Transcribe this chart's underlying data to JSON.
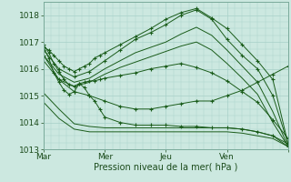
{
  "xlabel": "Pression niveau de la mer( hPa )",
  "bg_color": "#cce8e0",
  "grid_color": "#a8d0c8",
  "line_color": "#1a5c1a",
  "marker_color": "#1a5c1a",
  "ylim": [
    1013.0,
    1018.5
  ],
  "xlim": [
    0,
    192
  ],
  "x_ticks": [
    0,
    48,
    96,
    144,
    192
  ],
  "x_tick_labels": [
    "Mar",
    "Mer",
    "Jeu",
    "Ven",
    ""
  ],
  "y_ticks": [
    1013,
    1014,
    1015,
    1016,
    1017,
    1018
  ],
  "lines": [
    {
      "x": [
        0,
        4,
        8,
        12,
        16,
        20,
        24,
        28,
        32,
        36,
        40,
        44,
        48,
        60,
        72,
        84,
        96,
        108,
        120,
        132,
        144,
        156,
        168,
        180,
        192
      ],
      "y": [
        1016.8,
        1016.7,
        1016.5,
        1016.3,
        1016.1,
        1016.0,
        1015.9,
        1016.0,
        1016.1,
        1016.2,
        1016.4,
        1016.5,
        1016.6,
        1016.9,
        1017.2,
        1017.5,
        1017.85,
        1018.1,
        1018.25,
        1017.9,
        1017.5,
        1016.9,
        1016.3,
        1015.6,
        1013.2
      ],
      "marker": "+"
    },
    {
      "x": [
        0,
        12,
        24,
        36,
        48,
        60,
        72,
        84,
        96,
        108,
        120,
        132,
        144,
        156,
        168,
        180,
        192
      ],
      "y": [
        1016.7,
        1016.0,
        1015.7,
        1015.9,
        1016.3,
        1016.7,
        1017.1,
        1017.35,
        1017.65,
        1018.0,
        1018.2,
        1017.85,
        1017.1,
        1016.5,
        1016.0,
        1015.0,
        1013.2
      ],
      "marker": "+"
    },
    {
      "x": [
        0,
        12,
        24,
        36,
        48,
        60,
        72,
        84,
        96,
        108,
        120,
        132,
        144,
        156,
        168,
        180,
        192
      ],
      "y": [
        1016.5,
        1015.8,
        1015.5,
        1015.65,
        1016.0,
        1016.3,
        1016.6,
        1016.8,
        1017.0,
        1017.3,
        1017.55,
        1017.25,
        1016.7,
        1016.1,
        1015.5,
        1014.4,
        1013.1
      ],
      "marker": null
    },
    {
      "x": [
        0,
        12,
        24,
        36,
        48,
        60,
        72,
        84,
        96,
        108,
        120,
        132,
        144,
        156,
        168,
        180,
        192
      ],
      "y": [
        1016.3,
        1015.6,
        1015.35,
        1015.5,
        1015.8,
        1016.05,
        1016.25,
        1016.45,
        1016.65,
        1016.85,
        1017.0,
        1016.7,
        1016.2,
        1015.65,
        1015.05,
        1014.0,
        1013.1
      ],
      "marker": null
    },
    {
      "x": [
        0,
        4,
        8,
        12,
        16,
        20,
        24,
        28,
        32,
        36,
        40,
        44,
        48,
        60,
        72,
        84,
        96,
        108,
        120,
        132,
        144,
        156,
        168,
        180,
        192
      ],
      "y": [
        1016.9,
        1016.6,
        1016.2,
        1015.9,
        1015.6,
        1015.4,
        1015.35,
        1015.45,
        1015.5,
        1015.55,
        1015.55,
        1015.6,
        1015.65,
        1015.75,
        1015.85,
        1016.0,
        1016.1,
        1016.2,
        1016.05,
        1015.85,
        1015.55,
        1015.15,
        1014.75,
        1014.1,
        1013.4
      ],
      "marker": "+"
    },
    {
      "x": [
        0,
        4,
        8,
        12,
        16,
        20,
        24,
        28,
        32,
        36,
        40,
        44,
        48,
        60,
        72,
        84,
        96,
        108,
        120,
        132,
        144,
        156,
        168,
        180,
        192
      ],
      "y": [
        1016.8,
        1016.4,
        1015.85,
        1015.5,
        1015.2,
        1015.05,
        1015.15,
        1015.45,
        1015.3,
        1015.0,
        1014.8,
        1014.5,
        1014.2,
        1014.0,
        1013.9,
        1013.9,
        1013.9,
        1013.85,
        1013.85,
        1013.8,
        1013.8,
        1013.75,
        1013.65,
        1013.5,
        1013.1
      ],
      "marker": "+"
    },
    {
      "x": [
        0,
        12,
        24,
        36,
        48,
        60,
        72,
        84,
        96,
        108,
        120,
        132,
        144,
        156,
        168,
        180,
        192
      ],
      "y": [
        1016.5,
        1015.6,
        1015.15,
        1015.0,
        1014.8,
        1014.6,
        1014.5,
        1014.5,
        1014.6,
        1014.7,
        1014.8,
        1014.8,
        1015.0,
        1015.2,
        1015.5,
        1015.8,
        1016.1
      ],
      "marker": "+"
    },
    {
      "x": [
        0,
        12,
        24,
        36,
        48,
        60,
        72,
        84,
        96,
        108,
        120,
        132,
        144,
        156,
        168,
        180,
        192
      ],
      "y": [
        1015.1,
        1014.5,
        1013.95,
        1013.85,
        1013.8,
        1013.8,
        1013.8,
        1013.8,
        1013.8,
        1013.8,
        1013.8,
        1013.8,
        1013.8,
        1013.75,
        1013.65,
        1013.5,
        1013.2
      ],
      "marker": null
    },
    {
      "x": [
        0,
        12,
        24,
        36,
        48,
        60,
        72,
        84,
        96,
        108,
        120,
        132,
        144,
        156,
        168,
        180,
        192
      ],
      "y": [
        1014.75,
        1014.15,
        1013.75,
        1013.65,
        1013.65,
        1013.65,
        1013.65,
        1013.65,
        1013.65,
        1013.65,
        1013.65,
        1013.65,
        1013.65,
        1013.6,
        1013.5,
        1013.4,
        1013.1
      ],
      "marker": null
    }
  ]
}
